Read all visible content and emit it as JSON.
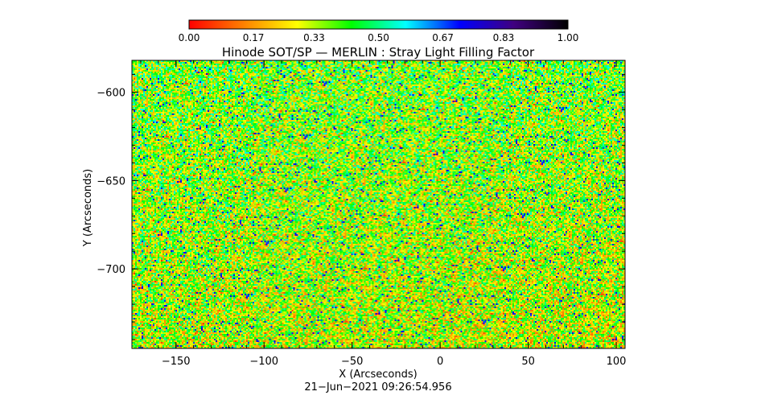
{
  "chart_data": {
    "type": "heatmap",
    "title": "Hinode SOT/SP — MERLIN : Stray Light Filling Factor",
    "xlabel": "X (Arcseconds)",
    "ylabel": "Y (Arcseconds)",
    "xlim": [
      -175,
      105
    ],
    "ylim": [
      -745,
      -582
    ],
    "x_ticks": [
      {
        "value": -150,
        "label": "−150"
      },
      {
        "value": -100,
        "label": "−100"
      },
      {
        "value": -50,
        "label": "−50"
      },
      {
        "value": 0,
        "label": "0"
      },
      {
        "value": 50,
        "label": "50"
      },
      {
        "value": 100,
        "label": "100"
      }
    ],
    "y_ticks": [
      {
        "value": -600,
        "label": "−600"
      },
      {
        "value": -650,
        "label": "−650"
      },
      {
        "value": -700,
        "label": "−700"
      }
    ],
    "colorbar": {
      "range": [
        0,
        1
      ],
      "ticks": [
        {
          "value": 0.0,
          "label": "0.00"
        },
        {
          "value": 0.17,
          "label": "0.17"
        },
        {
          "value": 0.33,
          "label": "0.33"
        },
        {
          "value": 0.5,
          "label": "0.50"
        },
        {
          "value": 0.67,
          "label": "0.67"
        },
        {
          "value": 0.83,
          "label": "0.83"
        },
        {
          "value": 1.0,
          "label": "1.00"
        }
      ],
      "colors": [
        "#ff0000",
        "#ff8000",
        "#ffff00",
        "#00ff00",
        "#00ffff",
        "#0000ff",
        "#400080",
        "#000000"
      ]
    },
    "field_description": "dense speckled noise, values mostly 0.25-0.65, sparse blue (~0.8) patches"
  },
  "footer": {
    "timestamp": "21−Jun−2021  09:26:54.956"
  }
}
